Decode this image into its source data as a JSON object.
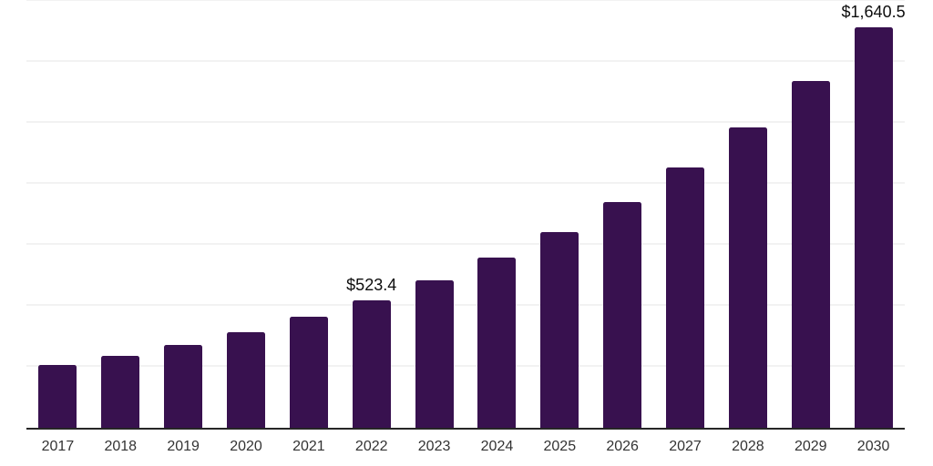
{
  "chart_data": {
    "type": "bar",
    "title": "",
    "xlabel": "",
    "ylabel": "",
    "categories": [
      "2017",
      "2018",
      "2019",
      "2020",
      "2021",
      "2022",
      "2023",
      "2024",
      "2025",
      "2026",
      "2027",
      "2028",
      "2029",
      "2030"
    ],
    "values": [
      256.4,
      295.8,
      341.2,
      393.6,
      453.9,
      523.4,
      603.7,
      696.4,
      803.3,
      926.7,
      1068.9,
      1233.0,
      1422.3,
      1640.5
    ],
    "data_labels": [
      "",
      "",
      "",
      "",
      "",
      "$523.4",
      "",
      "",
      "",
      "",
      "",
      "",
      "",
      "$1,640.5"
    ],
    "ylim": [
      0,
      1750
    ],
    "gridline_step": 250,
    "grid": true,
    "legend_position": "none",
    "y_axis_tick_labels_visible": false,
    "colors": {
      "bar": "#38114f",
      "gridline": "#f2f2f2",
      "axis_line": "#262626",
      "tick_label": "#333333",
      "data_label": "#0d0d0d",
      "background": "#ffffff"
    }
  }
}
